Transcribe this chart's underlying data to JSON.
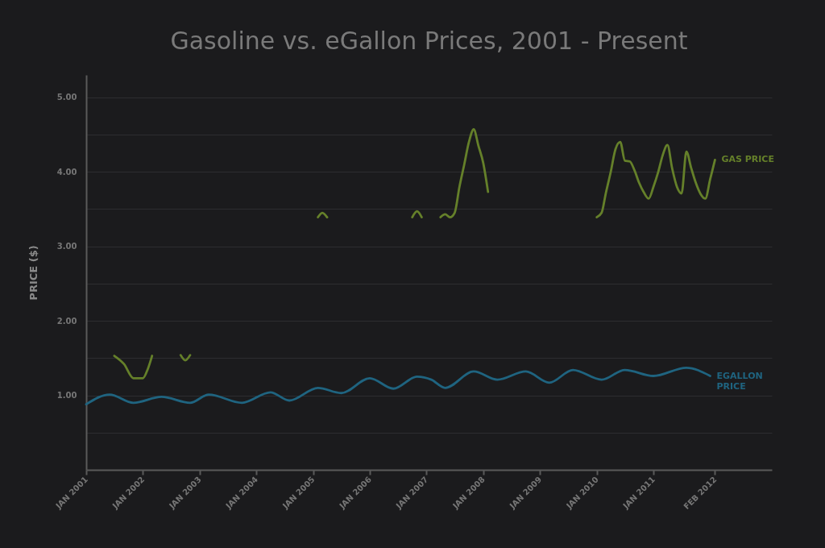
{
  "chart_data": {
    "type": "line",
    "title": "Gasoline vs. eGallon Prices, 2001 - Present",
    "ylabel": "PRICE ($)",
    "xlim": [
      "2001-01",
      "2013-02"
    ],
    "xticks": [
      {
        "value": "2001-01",
        "label": "JAN 2001"
      },
      {
        "value": "2002-01",
        "label": "JAN 2002"
      },
      {
        "value": "2003-01",
        "label": "JAN 2003"
      },
      {
        "value": "2004-01",
        "label": "JAN 2004"
      },
      {
        "value": "2005-01",
        "label": "JAN 2005"
      },
      {
        "value": "2006-01",
        "label": "JAN 2006"
      },
      {
        "value": "2007-01",
        "label": "JAN 2007"
      },
      {
        "value": "2008-01",
        "label": "JAN 2008"
      },
      {
        "value": "2009-01",
        "label": "JAN 2009"
      },
      {
        "value": "2010-01",
        "label": "JAN 2010"
      },
      {
        "value": "2011-01",
        "label": "JAN 2011"
      },
      {
        "value": "2012-02",
        "label": "FEB 2012"
      }
    ],
    "ylim": [
      0,
      5.3
    ],
    "yticks": [
      {
        "value": 0.5,
        "label": null
      },
      {
        "value": 1,
        "label": "1.00"
      },
      {
        "value": 1.5,
        "label": null
      },
      {
        "value": 2,
        "label": "2.00"
      },
      {
        "value": 2.5,
        "label": null
      },
      {
        "value": 3,
        "label": "3.00"
      },
      {
        "value": 3.5,
        "label": null
      },
      {
        "value": 4,
        "label": "4.00"
      },
      {
        "value": 4.5,
        "label": null
      },
      {
        "value": 5,
        "label": "5.00"
      }
    ],
    "grid": "y",
    "legend": false,
    "marker": "none",
    "line_style": "solid",
    "series": [
      {
        "name": "GAS PRICE",
        "color": "#65802a",
        "x": [
          "2001-07",
          "2001-09",
          "2001-11",
          "2002-01",
          "2002-02",
          "2002-03",
          "2002-06",
          "2002-09",
          "2002-10",
          "2002-11",
          "2003-06",
          "2005-02",
          "2005-03",
          "2005-04",
          "2005-10",
          "2006-10",
          "2006-11",
          "2006-12",
          "2007-02",
          "2007-04",
          "2007-05",
          "2007-06",
          "2007-07",
          "2007-08",
          "2007-09",
          "2007-10",
          "2007-11",
          "2007-12",
          "2008-01",
          "2008-02",
          "2009-01",
          "2010-01",
          "2010-02",
          "2010-03",
          "2010-04",
          "2010-05",
          "2010-06",
          "2010-07",
          "2010-08",
          "2010-09",
          "2010-10",
          "2010-11",
          "2010-12",
          "2011-01",
          "2011-02",
          "2011-03",
          "2011-04",
          "2011-05",
          "2011-06",
          "2011-07",
          "2011-08",
          "2011-09",
          "2011-10",
          "2011-11",
          "2011-12",
          "2012-01",
          "2012-02"
        ],
        "values": [
          1.53,
          1.42,
          1.23,
          1.23,
          1.35,
          1.53,
          null,
          1.54,
          1.47,
          1.54,
          null,
          3.39,
          3.45,
          3.39,
          null,
          3.39,
          3.47,
          3.39,
          null,
          3.39,
          3.43,
          3.39,
          3.45,
          3.8,
          4.1,
          4.4,
          4.57,
          4.35,
          4.12,
          3.73,
          null,
          3.39,
          3.45,
          3.72,
          4.0,
          4.3,
          4.4,
          4.15,
          4.14,
          4.02,
          3.85,
          3.72,
          3.64,
          3.8,
          4.0,
          4.22,
          4.36,
          4.05,
          3.8,
          3.71,
          4.27,
          4.05,
          3.85,
          3.7,
          3.64,
          3.9,
          4.16
        ]
      },
      {
        "name": "EGALLON\nPRICE",
        "color": "#1f6480",
        "x": [
          "2001-01",
          "2001-06",
          "2001-11",
          "2002-05",
          "2002-11",
          "2003-03",
          "2003-10",
          "2004-04",
          "2004-08",
          "2005-02",
          "2005-07",
          "2006-01",
          "2006-06",
          "2006-11",
          "2007-02",
          "2007-05",
          "2007-11",
          "2008-04",
          "2008-10",
          "2009-03",
          "2009-08",
          "2010-02",
          "2010-07",
          "2011-01",
          "2011-08",
          "2012-01"
        ],
        "values": [
          0.88,
          1.01,
          0.9,
          0.98,
          0.9,
          1.01,
          0.9,
          1.04,
          0.93,
          1.1,
          1.03,
          1.23,
          1.09,
          1.25,
          1.21,
          1.1,
          1.32,
          1.21,
          1.32,
          1.17,
          1.34,
          1.21,
          1.34,
          1.26,
          1.37,
          1.26
        ]
      }
    ]
  }
}
